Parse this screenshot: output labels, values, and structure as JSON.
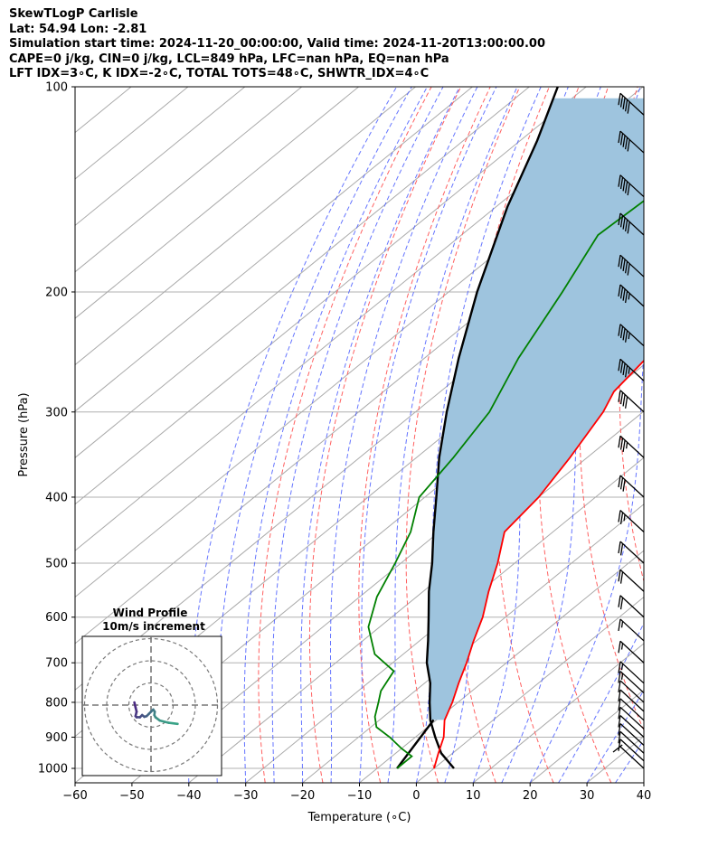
{
  "header": {
    "line1": "SkewTLogP Carlisle",
    "line2": "Lat: 54.94   Lon: -2.81",
    "line3": "Simulation start time: 2024-11-20_00:00:00, Valid time: 2024-11-20T13:00:00.00",
    "line4": "CAPE=0 j/kg, CIN=0 j/kg, LCL=849 hPa, LFC=nan hPa, EQ=nan hPa",
    "line5": "LFT IDX=3∘C, K IDX=-2∘C, TOTAL TOTS=48∘C, SHWTR_IDX=4∘C"
  },
  "chart_data": {
    "type": "line",
    "subtype": "skew-T log-P diagram",
    "xlabel": "Temperature (∘C)",
    "ylabel": "Pressure (hPa)",
    "xlim": [
      -60,
      40
    ],
    "ylim": [
      1050,
      100
    ],
    "y_scale": "log",
    "x_ticks": [
      -60,
      -50,
      -40,
      -30,
      -20,
      -10,
      0,
      10,
      20,
      30,
      40
    ],
    "x_tick_labels": [
      "−60",
      "−50",
      "−40",
      "−30",
      "−20",
      "−10",
      "0",
      "10",
      "20",
      "30",
      "40"
    ],
    "y_ticks": [
      1000,
      900,
      800,
      700,
      600,
      500,
      400,
      300,
      200,
      100
    ],
    "y_tick_labels": [
      "1000",
      "900",
      "800",
      "700",
      "600",
      "500",
      "400",
      "300",
      "200",
      "100"
    ],
    "grid": true,
    "series": [
      {
        "role": "temperature",
        "color": "#ff0000",
        "points": [
          [
            1000,
            0
          ],
          [
            950,
            -2.5
          ],
          [
            900,
            -5
          ],
          [
            850,
            -8.5
          ],
          [
            800,
            -11
          ],
          [
            750,
            -14
          ],
          [
            700,
            -17
          ],
          [
            650,
            -20.5
          ],
          [
            600,
            -24
          ],
          [
            550,
            -28.5
          ],
          [
            500,
            -33
          ],
          [
            450,
            -38.5
          ],
          [
            400,
            -40
          ],
          [
            350,
            -43
          ],
          [
            300,
            -47
          ],
          [
            280,
            -49.5
          ],
          [
            250,
            -51
          ],
          [
            220,
            -52.5
          ],
          [
            200,
            -53.5
          ],
          [
            170,
            -55
          ],
          [
            150,
            -56
          ],
          [
            130,
            -56.5
          ],
          [
            115,
            -57
          ],
          [
            100,
            -57
          ]
        ]
      },
      {
        "role": "dewpoint",
        "color": "#008000",
        "points": [
          [
            1000,
            -6.5
          ],
          [
            960,
            -6.5
          ],
          [
            935,
            -10
          ],
          [
            900,
            -14.5
          ],
          [
            870,
            -19
          ],
          [
            840,
            -21.5
          ],
          [
            800,
            -24
          ],
          [
            770,
            -26
          ],
          [
            720,
            -28
          ],
          [
            680,
            -35
          ],
          [
            620,
            -42
          ],
          [
            560,
            -47
          ],
          [
            500,
            -51
          ],
          [
            450,
            -55
          ],
          [
            400,
            -61
          ],
          [
            350,
            -63.5
          ],
          [
            300,
            -67
          ],
          [
            250,
            -73.5
          ],
          [
            200,
            -80
          ],
          [
            165,
            -86
          ],
          [
            140,
            -85
          ],
          [
            120,
            -86
          ],
          [
            100,
            -88
          ]
        ]
      },
      {
        "role": "parcel profile",
        "color": "#000000",
        "points": [
          [
            1000,
            3.5
          ],
          [
            950,
            -2
          ],
          [
            900,
            -6.5
          ],
          [
            850,
            -11
          ],
          [
            800,
            -15
          ],
          [
            750,
            -19
          ],
          [
            700,
            -24
          ],
          [
            650,
            -28.5
          ],
          [
            600,
            -33.5
          ],
          [
            550,
            -39
          ],
          [
            500,
            -44.5
          ],
          [
            450,
            -51
          ],
          [
            400,
            -58
          ],
          [
            350,
            -66
          ],
          [
            300,
            -74.5
          ],
          [
            250,
            -84
          ],
          [
            200,
            -95
          ],
          [
            150,
            -108
          ],
          [
            120,
            -117
          ],
          [
            100,
            -125
          ]
        ]
      },
      {
        "role": "surface dewpoint to LCL",
        "color": "#000000",
        "points": [
          [
            1000,
            -6.5
          ],
          [
            849,
            -10.5
          ]
        ]
      }
    ],
    "wind_barbs": {
      "pressures": [
        1000,
        975,
        950,
        925,
        900,
        875,
        850,
        825,
        800,
        775,
        750,
        700,
        650,
        600,
        550,
        500,
        450,
        400,
        350,
        300,
        270,
        240,
        210,
        190,
        165,
        145,
        125,
        110
      ],
      "barb_shapes": [
        "short",
        "1",
        "1",
        "1",
        "1",
        "1",
        "1",
        "1",
        "1",
        "1.5",
        "1.5",
        "1.5",
        "1.5",
        "2",
        "2",
        "2",
        "2.5",
        "3",
        "3.5",
        "4",
        "4.5",
        "4.5",
        "4.5",
        "5",
        "5",
        "5",
        "5",
        "5"
      ]
    },
    "inset": {
      "title": "Wind Profile",
      "subtitle": "10m/s increment",
      "rings_mps": [
        10,
        20,
        30
      ],
      "hodograph_uv": [
        [
          12,
          -8.5
        ],
        [
          8,
          -8
        ],
        [
          4,
          -7
        ],
        [
          2,
          -5.5
        ],
        [
          1.5,
          -4.5
        ],
        [
          1.7,
          -3
        ],
        [
          1,
          -2
        ],
        [
          0,
          -3
        ],
        [
          -1,
          -4
        ],
        [
          -2,
          -5
        ],
        [
          -3,
          -5.3
        ],
        [
          -4,
          -4.5
        ],
        [
          -5,
          -5.5
        ],
        [
          -6.5,
          -5.5
        ],
        [
          -7,
          -5
        ],
        [
          -6.5,
          -3
        ],
        [
          -7,
          -1
        ],
        [
          -7.5,
          1.2
        ]
      ],
      "hodograph_colors": [
        "#3aa387",
        "#4b2a82"
      ]
    }
  }
}
